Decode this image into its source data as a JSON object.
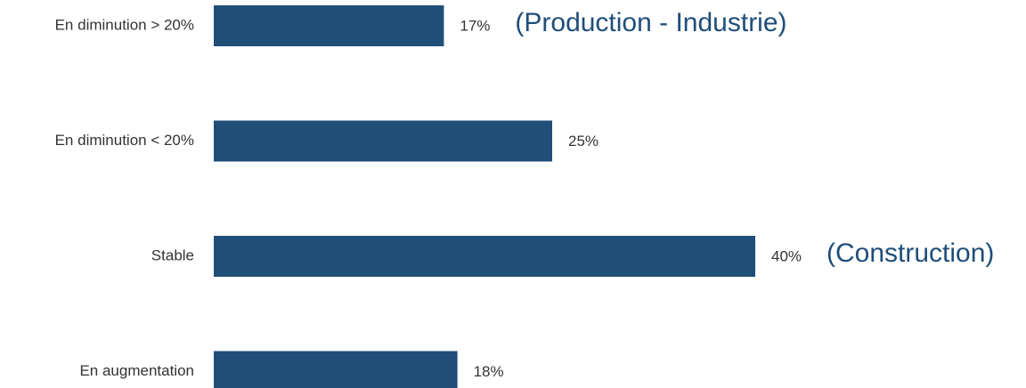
{
  "chart_data": {
    "type": "bar",
    "orientation": "horizontal",
    "categories": [
      "En diminution > 20%",
      "En diminution < 20%",
      "Stable",
      "En augmentation"
    ],
    "values": [
      17,
      25,
      40,
      18
    ],
    "value_labels": [
      "17%",
      "25%",
      "40%",
      "18%"
    ],
    "unit": "%",
    "xlim": [
      0,
      40
    ],
    "grid": false,
    "bar_color": "#1f4e79",
    "annotations": [
      {
        "text": "(Production - Industrie)",
        "category_index": 0
      },
      {
        "text": "(Construction)",
        "category_index": 2
      }
    ],
    "annotation_color": "#1f4e79"
  }
}
